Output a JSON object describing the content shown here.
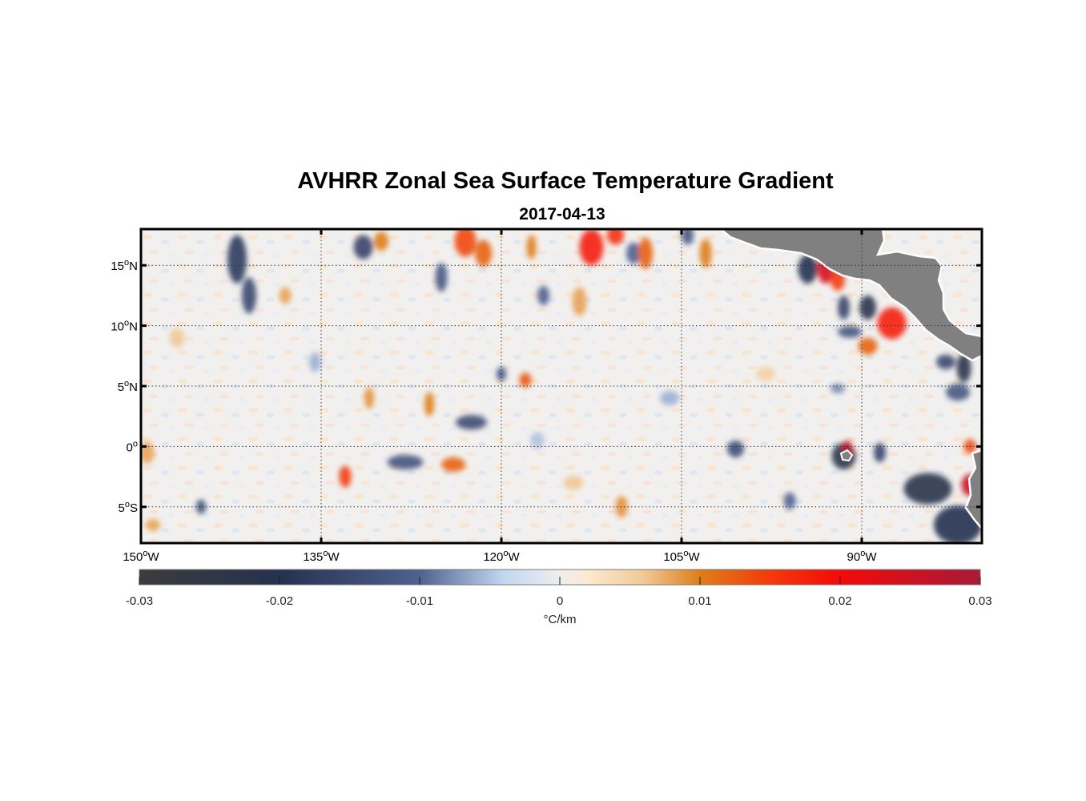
{
  "figure": {
    "title": "AVHRR Zonal Sea Surface Temperature Gradient",
    "subtitle": "2017-04-13"
  },
  "map": {
    "lon_range": [
      -150,
      -80
    ],
    "lat_range": [
      -8,
      18
    ],
    "land_color": "#808080",
    "grid": "dotted",
    "lat_ticks": [
      {
        "value": 15,
        "label": "15",
        "hemi": "N"
      },
      {
        "value": 10,
        "label": "10",
        "hemi": "N"
      },
      {
        "value": 5,
        "label": "5",
        "hemi": "N"
      },
      {
        "value": 0,
        "label": "0",
        "hemi": ""
      },
      {
        "value": -5,
        "label": "5",
        "hemi": "S"
      }
    ],
    "lon_ticks": [
      {
        "value": -150,
        "label": "150",
        "hemi": "W"
      },
      {
        "value": -135,
        "label": "135",
        "hemi": "W"
      },
      {
        "value": -120,
        "label": "120",
        "hemi": "W"
      },
      {
        "value": -105,
        "label": "105",
        "hemi": "W"
      },
      {
        "value": -90,
        "label": "90",
        "hemi": "W"
      }
    ],
    "features": [
      {
        "lon": -142,
        "lat": 15.5,
        "rlon": 0.8,
        "rlat": 2.0,
        "v": -0.018
      },
      {
        "lon": -141,
        "lat": 12.5,
        "rlon": 0.6,
        "rlat": 1.5,
        "v": -0.015
      },
      {
        "lon": -131.5,
        "lat": 16.5,
        "rlon": 0.8,
        "rlat": 1.0,
        "v": -0.016
      },
      {
        "lon": -130,
        "lat": 17,
        "rlon": 0.6,
        "rlat": 0.8,
        "v": 0.01
      },
      {
        "lon": -123,
        "lat": 17,
        "rlon": 0.9,
        "rlat": 1.3,
        "v": 0.014
      },
      {
        "lon": -121.5,
        "lat": 16,
        "rlon": 0.7,
        "rlat": 1.1,
        "v": 0.012
      },
      {
        "lon": -125,
        "lat": 14,
        "rlon": 0.5,
        "rlat": 1.2,
        "v": -0.012
      },
      {
        "lon": -117.5,
        "lat": 16.5,
        "rlon": 0.4,
        "rlat": 1.0,
        "v": 0.01
      },
      {
        "lon": -112.5,
        "lat": 16.5,
        "rlon": 1.0,
        "rlat": 1.5,
        "v": 0.018
      },
      {
        "lon": -110.5,
        "lat": 17.5,
        "rlon": 0.7,
        "rlat": 0.8,
        "v": 0.016
      },
      {
        "lon": -109,
        "lat": 16,
        "rlon": 0.6,
        "rlat": 0.9,
        "v": -0.01
      },
      {
        "lon": -108,
        "lat": 16,
        "rlon": 0.6,
        "rlat": 1.3,
        "v": 0.012
      },
      {
        "lon": -113.5,
        "lat": 12,
        "rlon": 0.6,
        "rlat": 1.2,
        "v": 0.008
      },
      {
        "lon": -116.5,
        "lat": 12.5,
        "rlon": 0.5,
        "rlat": 0.8,
        "v": -0.01
      },
      {
        "lon": -104.5,
        "lat": 17.5,
        "rlon": 0.5,
        "rlat": 0.8,
        "v": -0.012
      },
      {
        "lon": -103,
        "lat": 16,
        "rlon": 0.5,
        "rlat": 1.2,
        "v": 0.01
      },
      {
        "lon": -94.5,
        "lat": 14.7,
        "rlon": 0.8,
        "rlat": 1.2,
        "v": -0.02
      },
      {
        "lon": -93,
        "lat": 14.8,
        "rlon": 0.7,
        "rlat": 1.3,
        "v": 0.024
      },
      {
        "lon": -92,
        "lat": 13.8,
        "rlon": 0.6,
        "rlat": 0.9,
        "v": 0.015
      },
      {
        "lon": -91.5,
        "lat": 11.5,
        "rlon": 0.5,
        "rlat": 1.0,
        "v": -0.016
      },
      {
        "lon": -89.5,
        "lat": 11.5,
        "rlon": 0.7,
        "rlat": 1.0,
        "v": -0.022
      },
      {
        "lon": -87.5,
        "lat": 10.2,
        "rlon": 1.2,
        "rlat": 1.3,
        "v": 0.018
      },
      {
        "lon": -89.5,
        "lat": 8.3,
        "rlon": 0.8,
        "rlat": 0.7,
        "v": 0.012
      },
      {
        "lon": -91,
        "lat": 9.5,
        "rlon": 1.0,
        "rlat": 0.5,
        "v": -0.012
      },
      {
        "lon": -81.5,
        "lat": 6.5,
        "rlon": 0.6,
        "rlat": 1.2,
        "v": -0.022
      },
      {
        "lon": -83,
        "lat": 7,
        "rlon": 0.8,
        "rlat": 0.6,
        "v": -0.015
      },
      {
        "lon": -82,
        "lat": 4.5,
        "rlon": 1.0,
        "rlat": 0.7,
        "v": -0.012
      },
      {
        "lon": -118,
        "lat": 5.5,
        "rlon": 0.5,
        "rlat": 0.6,
        "v": 0.013
      },
      {
        "lon": -120,
        "lat": 6,
        "rlon": 0.4,
        "rlat": 0.6,
        "v": -0.012
      },
      {
        "lon": -122.5,
        "lat": 2,
        "rlon": 1.3,
        "rlat": 0.6,
        "v": -0.014
      },
      {
        "lon": -126,
        "lat": 3.5,
        "rlon": 0.4,
        "rlat": 1.0,
        "v": 0.01
      },
      {
        "lon": -131,
        "lat": 4,
        "rlon": 0.4,
        "rlat": 0.9,
        "v": 0.009
      },
      {
        "lon": -128,
        "lat": -1.3,
        "rlon": 1.5,
        "rlat": 0.6,
        "v": -0.013
      },
      {
        "lon": -124,
        "lat": -1.5,
        "rlon": 1.0,
        "rlat": 0.6,
        "v": 0.012
      },
      {
        "lon": -133,
        "lat": -2.5,
        "rlon": 0.5,
        "rlat": 0.9,
        "v": 0.015
      },
      {
        "lon": -145,
        "lat": -5,
        "rlon": 0.4,
        "rlat": 0.6,
        "v": -0.014
      },
      {
        "lon": -149.5,
        "lat": -0.5,
        "rlon": 0.6,
        "rlat": 0.9,
        "v": 0.008
      },
      {
        "lon": -149,
        "lat": -6.5,
        "rlon": 0.6,
        "rlat": 0.5,
        "v": 0.008
      },
      {
        "lon": -100.5,
        "lat": -0.2,
        "rlon": 0.7,
        "rlat": 0.7,
        "v": -0.014
      },
      {
        "lon": -96,
        "lat": -4.5,
        "rlon": 0.5,
        "rlat": 0.7,
        "v": -0.01
      },
      {
        "lon": -91.5,
        "lat": -0.8,
        "rlon": 1.0,
        "rlat": 1.1,
        "v": -0.022
      },
      {
        "lon": -91.2,
        "lat": -0.2,
        "rlon": 0.4,
        "rlat": 0.7,
        "v": 0.026
      },
      {
        "lon": -88.5,
        "lat": -0.5,
        "rlon": 0.5,
        "rlat": 0.8,
        "v": -0.016
      },
      {
        "lon": -84.5,
        "lat": -3.5,
        "rlon": 2.0,
        "rlat": 1.3,
        "v": -0.022
      },
      {
        "lon": -82,
        "lat": -6.5,
        "rlon": 2.0,
        "rlat": 1.6,
        "v": -0.02
      },
      {
        "lon": -81,
        "lat": -3.2,
        "rlon": 0.7,
        "rlat": 0.9,
        "v": 0.025
      },
      {
        "lon": -81,
        "lat": 0,
        "rlon": 0.5,
        "rlat": 0.6,
        "v": 0.014
      },
      {
        "lon": -92,
        "lat": 4.8,
        "rlon": 0.6,
        "rlat": 0.4,
        "v": -0.008
      },
      {
        "lon": -110,
        "lat": -5,
        "rlon": 0.5,
        "rlat": 0.9,
        "v": 0.009
      },
      {
        "lon": -138,
        "lat": 12.5,
        "rlon": 0.5,
        "rlat": 0.7,
        "v": 0.008
      },
      {
        "lon": -147,
        "lat": 9,
        "rlon": 0.6,
        "rlat": 0.8,
        "v": 0.006
      },
      {
        "lon": -135.5,
        "lat": 7,
        "rlon": 0.5,
        "rlat": 0.8,
        "v": -0.006
      },
      {
        "lon": -106,
        "lat": 4,
        "rlon": 0.8,
        "rlat": 0.6,
        "v": -0.006
      },
      {
        "lon": -98,
        "lat": 6,
        "rlon": 0.8,
        "rlat": 0.6,
        "v": 0.005
      },
      {
        "lon": -114,
        "lat": -3,
        "rlon": 0.8,
        "rlat": 0.6,
        "v": 0.006
      },
      {
        "lon": -117,
        "lat": 0.5,
        "rlon": 0.6,
        "rlat": 0.7,
        "v": -0.005
      }
    ]
  },
  "colorbar": {
    "min": -0.03,
    "max": 0.03,
    "label": "°C/km",
    "ticks": [
      {
        "value": -0.03,
        "label": "-0.03"
      },
      {
        "value": -0.02,
        "label": "-0.02"
      },
      {
        "value": -0.01,
        "label": "-0.01"
      },
      {
        "value": 0,
        "label": "0"
      },
      {
        "value": 0.01,
        "label": "0.01"
      },
      {
        "value": 0.02,
        "label": "0.02"
      },
      {
        "value": 0.03,
        "label": "0.03"
      }
    ],
    "stops": [
      {
        "value": -0.03,
        "color": "#3c3c3c"
      },
      {
        "value": -0.02,
        "color": "#25314f"
      },
      {
        "value": -0.01,
        "color": "#4f618f"
      },
      {
        "value": -0.004,
        "color": "#c2d7f0"
      },
      {
        "value": 0,
        "color": "#eeeeee"
      },
      {
        "value": 0.002,
        "color": "#fde9cf"
      },
      {
        "value": 0.006,
        "color": "#f0c896"
      },
      {
        "value": 0.01,
        "color": "#de7e18"
      },
      {
        "value": 0.015,
        "color": "#f43a0a"
      },
      {
        "value": 0.02,
        "color": "#f40a0a"
      },
      {
        "value": 0.03,
        "color": "#a61a38"
      }
    ]
  }
}
